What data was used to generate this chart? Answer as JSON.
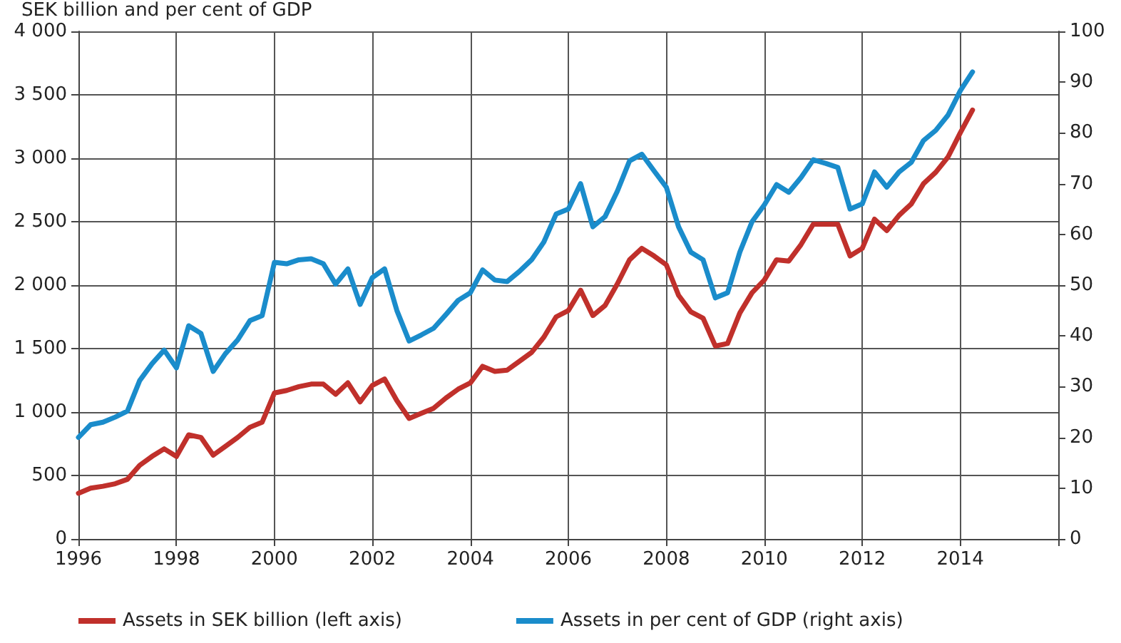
{
  "chart_data": {
    "type": "line",
    "ylabel": "SEK billion and per cent of GDP",
    "x": [
      1996,
      1996.25,
      1996.5,
      1996.75,
      1997,
      1997.25,
      1997.5,
      1997.75,
      1998,
      1998.25,
      1998.5,
      1998.75,
      1999,
      1999.25,
      1999.5,
      1999.75,
      2000,
      2000.25,
      2000.5,
      2000.75,
      2001,
      2001.25,
      2001.5,
      2001.75,
      2002,
      2002.25,
      2002.5,
      2002.75,
      2003,
      2003.25,
      2003.5,
      2003.75,
      2004,
      2004.25,
      2004.5,
      2004.75,
      2005,
      2005.25,
      2005.5,
      2005.75,
      2006,
      2006.25,
      2006.5,
      2006.75,
      2007,
      2007.25,
      2007.5,
      2007.75,
      2008,
      2008.25,
      2008.5,
      2008.75,
      2009,
      2009.25,
      2009.5,
      2009.75,
      2010,
      2010.25,
      2010.5,
      2010.75,
      2011,
      2011.25,
      2011.5,
      2011.75,
      2012,
      2012.25,
      2012.5,
      2012.75,
      2013,
      2013.25,
      2013.5,
      2013.75,
      2014,
      2014.25
    ],
    "series": [
      {
        "name": "Assets in SEK billion (left axis)",
        "color": "#c0302b",
        "values": [
          360,
          400,
          415,
          435,
          470,
          580,
          650,
          710,
          650,
          820,
          800,
          660,
          730,
          800,
          880,
          920,
          1150,
          1170,
          1200,
          1220,
          1220,
          1140,
          1230,
          1080,
          1210,
          1260,
          1090,
          950,
          990,
          1030,
          1110,
          1180,
          1230,
          1360,
          1320,
          1330,
          1400,
          1470,
          1590,
          1750,
          1800,
          1960,
          1760,
          1840,
          2010,
          2200,
          2290,
          2230,
          2160,
          1920,
          1790,
          1740,
          1520,
          1540,
          1780,
          1940,
          2040,
          2200,
          2190,
          2320,
          2480,
          2480,
          2480,
          2230,
          2290,
          2520,
          2430,
          2550,
          2640,
          2800,
          2890,
          3010,
          3200,
          3380
        ]
      },
      {
        "name": "Assets in per cent of GDP (right axis)",
        "color": "#1a8ccb",
        "axis": "y2",
        "values": [
          20,
          22.5,
          23,
          24,
          25.2,
          31.2,
          34.5,
          37.2,
          33.7,
          42,
          40.5,
          33,
          36.5,
          39.2,
          43,
          44,
          54.5,
          54.2,
          55,
          55.2,
          54.2,
          50.2,
          53.2,
          46.2,
          51.5,
          53.2,
          45,
          39,
          40.2,
          41.5,
          44.2,
          47,
          48.5,
          53,
          51,
          50.7,
          52.7,
          55,
          58.5,
          64,
          65,
          70,
          61.5,
          63.5,
          68.5,
          74.5,
          75.8,
          72.5,
          69.3,
          61.5,
          56.5,
          55,
          47.5,
          48.5,
          56.5,
          62.5,
          65.8,
          69.8,
          68.3,
          71.2,
          74.7,
          74,
          73.2,
          65,
          66,
          72.3,
          69.3,
          72.3,
          74.2,
          78.5,
          80.5,
          83.5,
          88.3,
          92
        ]
      }
    ],
    "xlim": [
      1996,
      2016
    ],
    "xticks": [
      1996,
      1998,
      2000,
      2002,
      2004,
      2006,
      2008,
      2010,
      2012,
      2014,
      {
        "value": 2016,
        "label": null
      }
    ],
    "ylim": [
      0,
      4000
    ],
    "yticks": [
      0,
      500,
      {
        "value": 1000,
        "label": "1 000"
      },
      {
        "value": 1500,
        "label": "1 500"
      },
      {
        "value": 2000,
        "label": "2 000"
      },
      {
        "value": 2500,
        "label": "2 500"
      },
      {
        "value": 3000,
        "label": "3 000"
      },
      {
        "value": 3500,
        "label": "3 500"
      },
      {
        "value": 4000,
        "label": "4 000"
      }
    ],
    "y2lim": [
      0,
      100
    ],
    "y2ticks": [
      0,
      10,
      20,
      30,
      40,
      50,
      60,
      70,
      80,
      90,
      100
    ],
    "grid": true,
    "legend": "bottom",
    "marker": "none",
    "line_style": "solid"
  }
}
